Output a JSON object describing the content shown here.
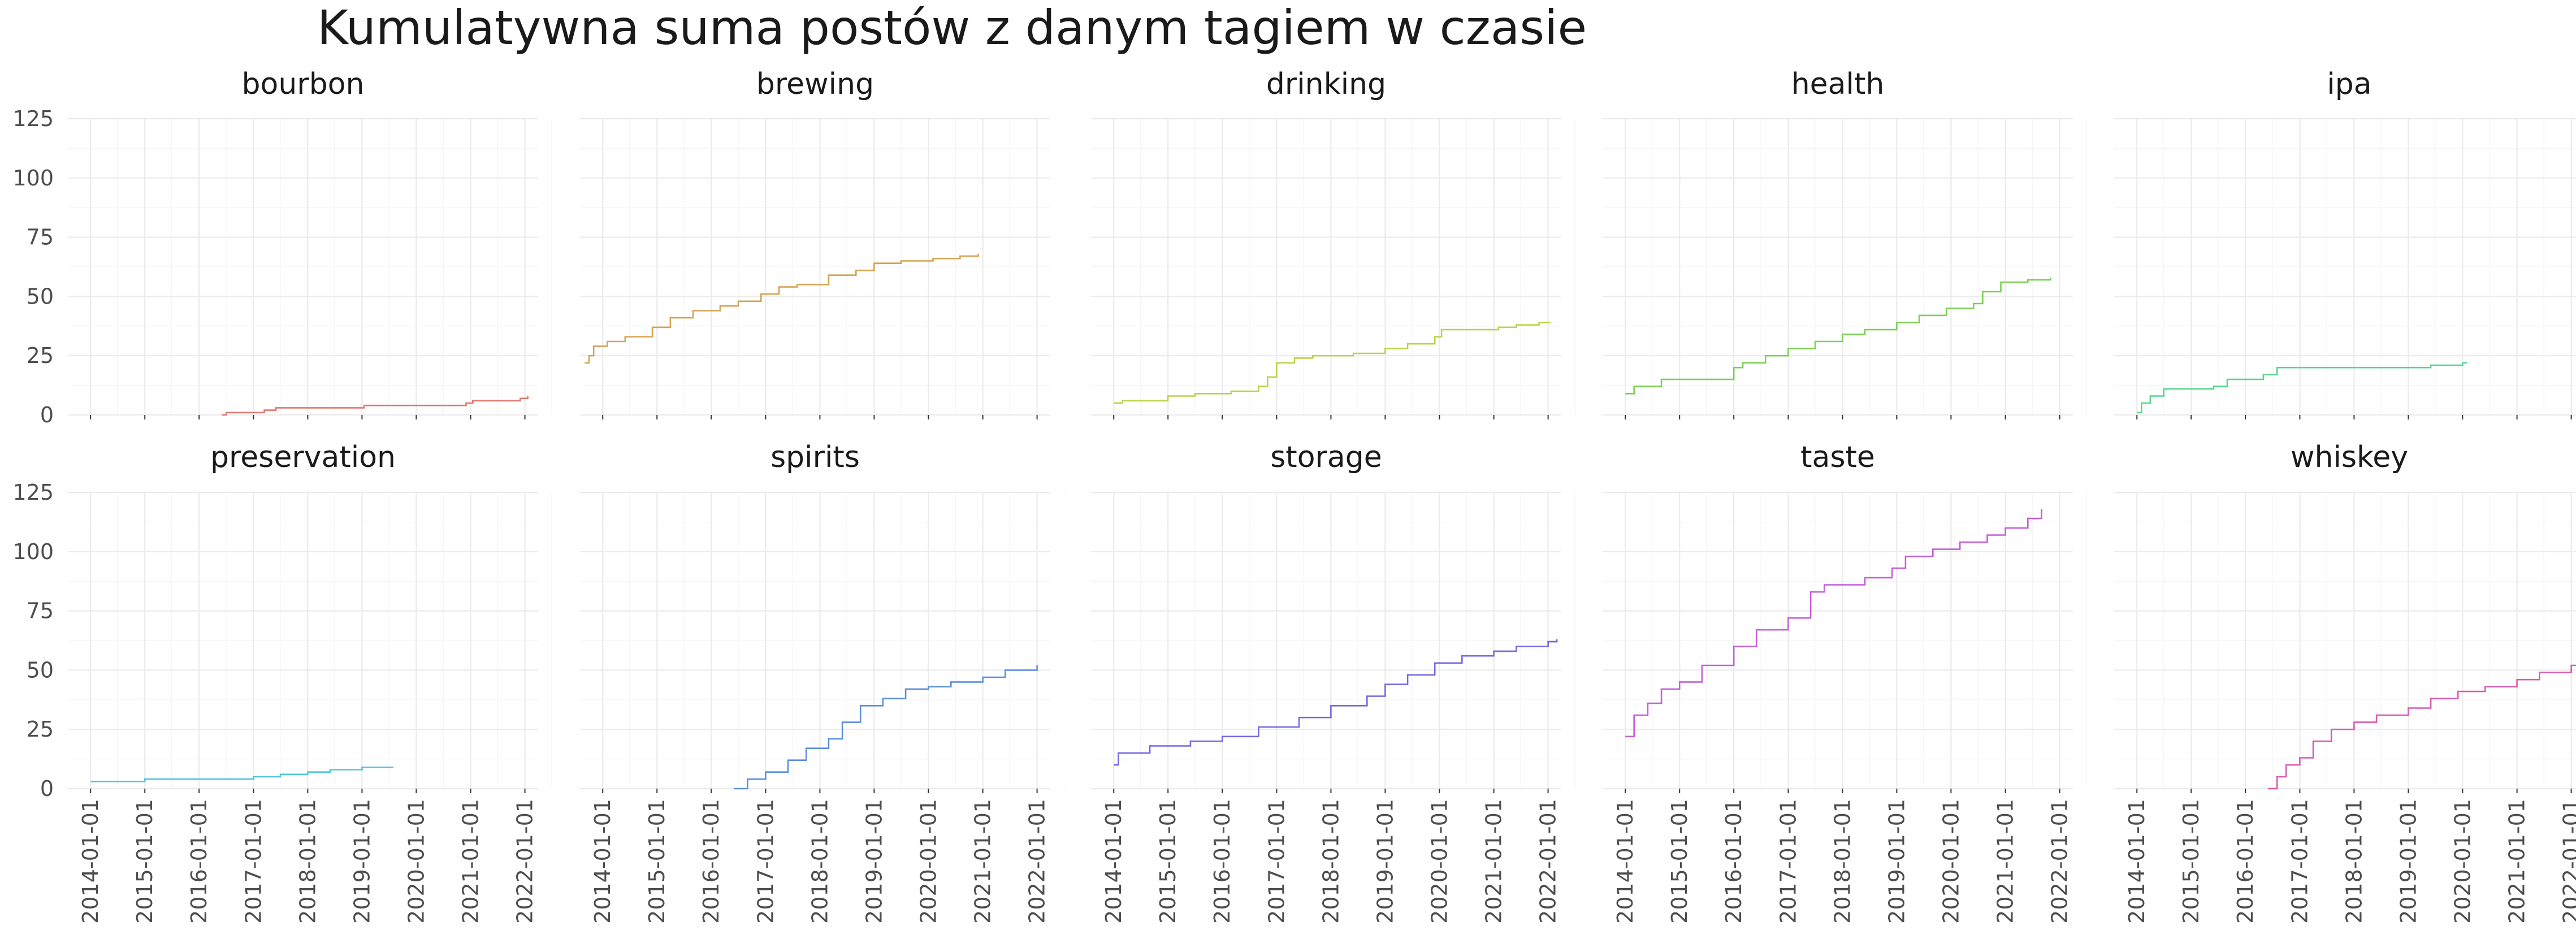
{
  "chart_data": {
    "type": "line",
    "title": "Kumulatywna suma postów z danym tagiem w czasie",
    "xlabel": "",
    "ylabel": "",
    "ylim": [
      0,
      125
    ],
    "y_ticks": [
      0,
      25,
      50,
      75,
      100,
      125
    ],
    "x_ticks": [
      "2014-01-01",
      "2015-01-01",
      "2016-01-01",
      "2017-01-01",
      "2018-01-01",
      "2019-01-01",
      "2020-01-01",
      "2021-01-01",
      "2022-01-01"
    ],
    "xlim": [
      "2013-08-01",
      "2022-03-31"
    ],
    "grid": true,
    "legend": "none",
    "layout": "facet_wrap 2 rows x 5 cols",
    "panels": [
      {
        "name": "bourbon",
        "color": "#E0786F",
        "points": [
          [
            "2016-06-01",
            0
          ],
          [
            "2016-07-01",
            1
          ],
          [
            "2017-02-01",
            1
          ],
          [
            "2017-03-15",
            2
          ],
          [
            "2017-06-01",
            3
          ],
          [
            "2019-01-15",
            4
          ],
          [
            "2020-12-01",
            5
          ],
          [
            "2021-01-15",
            6
          ],
          [
            "2021-12-01",
            7
          ],
          [
            "2022-01-20",
            8
          ]
        ]
      },
      {
        "name": "brewing",
        "color": "#D4A451",
        "points": [
          [
            "2013-09-01",
            22
          ],
          [
            "2013-10-01",
            25
          ],
          [
            "2013-11-01",
            29
          ],
          [
            "2014-02-01",
            31
          ],
          [
            "2014-06-01",
            33
          ],
          [
            "2014-12-01",
            37
          ],
          [
            "2015-04-01",
            41
          ],
          [
            "2015-09-01",
            44
          ],
          [
            "2016-03-01",
            46
          ],
          [
            "2016-07-01",
            48
          ],
          [
            "2016-12-01",
            51
          ],
          [
            "2017-04-01",
            54
          ],
          [
            "2017-08-01",
            55
          ],
          [
            "2018-03-01",
            59
          ],
          [
            "2018-09-01",
            61
          ],
          [
            "2019-01-01",
            64
          ],
          [
            "2019-07-01",
            65
          ],
          [
            "2020-02-01",
            66
          ],
          [
            "2020-08-01",
            67
          ],
          [
            "2020-12-01",
            68
          ]
        ]
      },
      {
        "name": "drinking",
        "color": "#BFD146",
        "points": [
          [
            "2014-01-01",
            5
          ],
          [
            "2014-03-01",
            6
          ],
          [
            "2015-01-01",
            8
          ],
          [
            "2015-07-01",
            9
          ],
          [
            "2016-03-01",
            10
          ],
          [
            "2016-09-01",
            12
          ],
          [
            "2016-11-01",
            16
          ],
          [
            "2017-01-01",
            22
          ],
          [
            "2017-05-01",
            24
          ],
          [
            "2017-09-01",
            25
          ],
          [
            "2018-06-01",
            26
          ],
          [
            "2019-01-01",
            28
          ],
          [
            "2019-06-01",
            30
          ],
          [
            "2019-12-01",
            33
          ],
          [
            "2020-01-15",
            36
          ],
          [
            "2021-02-01",
            37
          ],
          [
            "2021-06-01",
            38
          ],
          [
            "2021-11-01",
            39
          ],
          [
            "2022-01-20",
            39
          ]
        ]
      },
      {
        "name": "health",
        "color": "#7AD151",
        "points": [
          [
            "2014-01-01",
            9
          ],
          [
            "2014-03-01",
            12
          ],
          [
            "2014-09-01",
            15
          ],
          [
            "2015-01-01",
            15
          ],
          [
            "2016-01-01",
            20
          ],
          [
            "2016-03-01",
            22
          ],
          [
            "2016-08-01",
            25
          ],
          [
            "2017-01-01",
            28
          ],
          [
            "2017-07-01",
            31
          ],
          [
            "2018-01-01",
            34
          ],
          [
            "2018-06-01",
            36
          ],
          [
            "2019-01-01",
            39
          ],
          [
            "2019-06-01",
            42
          ],
          [
            "2019-12-01",
            45
          ],
          [
            "2020-06-01",
            47
          ],
          [
            "2020-08-01",
            52
          ],
          [
            "2020-12-01",
            56
          ],
          [
            "2021-06-01",
            57
          ],
          [
            "2021-11-01",
            58
          ]
        ]
      },
      {
        "name": "ipa",
        "color": "#55D68B",
        "points": [
          [
            "2014-01-01",
            1
          ],
          [
            "2014-02-01",
            5
          ],
          [
            "2014-04-01",
            8
          ],
          [
            "2014-07-01",
            11
          ],
          [
            "2015-06-01",
            12
          ],
          [
            "2015-09-01",
            15
          ],
          [
            "2016-05-01",
            17
          ],
          [
            "2016-08-01",
            20
          ],
          [
            "2018-01-01",
            20
          ],
          [
            "2019-06-01",
            21
          ],
          [
            "2020-01-01",
            22
          ],
          [
            "2020-02-01",
            22
          ]
        ]
      },
      {
        "name": "preservation",
        "color": "#4FC6D9",
        "points": [
          [
            "2014-01-01",
            3
          ],
          [
            "2015-01-01",
            4
          ],
          [
            "2016-06-01",
            4
          ],
          [
            "2017-01-01",
            5
          ],
          [
            "2017-07-01",
            6
          ],
          [
            "2018-01-01",
            7
          ],
          [
            "2018-06-01",
            8
          ],
          [
            "2019-01-01",
            9
          ],
          [
            "2019-08-01",
            9
          ]
        ]
      },
      {
        "name": "spirits",
        "color": "#5B8EE0",
        "points": [
          [
            "2016-06-01",
            0
          ],
          [
            "2016-09-01",
            4
          ],
          [
            "2017-01-01",
            7
          ],
          [
            "2017-06-01",
            12
          ],
          [
            "2017-10-01",
            17
          ],
          [
            "2018-03-01",
            21
          ],
          [
            "2018-06-01",
            28
          ],
          [
            "2018-10-01",
            35
          ],
          [
            "2019-03-01",
            38
          ],
          [
            "2019-08-01",
            42
          ],
          [
            "2020-01-01",
            43
          ],
          [
            "2020-06-01",
            45
          ],
          [
            "2021-01-01",
            47
          ],
          [
            "2021-06-01",
            50
          ],
          [
            "2022-01-01",
            52
          ]
        ]
      },
      {
        "name": "storage",
        "color": "#7468E3",
        "points": [
          [
            "2014-01-01",
            10
          ],
          [
            "2014-02-01",
            15
          ],
          [
            "2014-09-01",
            18
          ],
          [
            "2015-06-01",
            20
          ],
          [
            "2016-01-01",
            22
          ],
          [
            "2016-09-01",
            26
          ],
          [
            "2017-06-01",
            30
          ],
          [
            "2018-01-01",
            35
          ],
          [
            "2018-09-01",
            39
          ],
          [
            "2019-01-01",
            44
          ],
          [
            "2019-06-01",
            48
          ],
          [
            "2019-12-01",
            53
          ],
          [
            "2020-06-01",
            56
          ],
          [
            "2021-01-01",
            58
          ],
          [
            "2021-06-01",
            60
          ],
          [
            "2022-01-01",
            62
          ],
          [
            "2022-03-01",
            63
          ]
        ]
      },
      {
        "name": "taste",
        "color": "#C45ED9",
        "points": [
          [
            "2014-01-01",
            22
          ],
          [
            "2014-03-01",
            31
          ],
          [
            "2014-06-01",
            36
          ],
          [
            "2014-09-01",
            42
          ],
          [
            "2015-01-01",
            45
          ],
          [
            "2015-06-01",
            52
          ],
          [
            "2016-01-01",
            60
          ],
          [
            "2016-06-01",
            67
          ],
          [
            "2017-01-01",
            72
          ],
          [
            "2017-06-01",
            83
          ],
          [
            "2017-09-01",
            86
          ],
          [
            "2018-06-01",
            89
          ],
          [
            "2018-12-01",
            93
          ],
          [
            "2019-03-01",
            98
          ],
          [
            "2019-09-01",
            101
          ],
          [
            "2020-03-01",
            104
          ],
          [
            "2020-09-01",
            107
          ],
          [
            "2021-01-01",
            110
          ],
          [
            "2021-06-01",
            114
          ],
          [
            "2021-09-01",
            118
          ]
        ]
      },
      {
        "name": "whiskey",
        "color": "#D95BB0",
        "points": [
          [
            "2016-06-01",
            0
          ],
          [
            "2016-08-01",
            5
          ],
          [
            "2016-10-01",
            10
          ],
          [
            "2017-01-01",
            13
          ],
          [
            "2017-04-01",
            20
          ],
          [
            "2017-08-01",
            25
          ],
          [
            "2018-01-01",
            28
          ],
          [
            "2018-06-01",
            31
          ],
          [
            "2019-01-01",
            34
          ],
          [
            "2019-06-01",
            38
          ],
          [
            "2019-12-01",
            41
          ],
          [
            "2020-06-01",
            43
          ],
          [
            "2021-01-01",
            46
          ],
          [
            "2021-06-01",
            49
          ],
          [
            "2022-01-01",
            52
          ],
          [
            "2022-03-15",
            54
          ]
        ]
      }
    ]
  }
}
